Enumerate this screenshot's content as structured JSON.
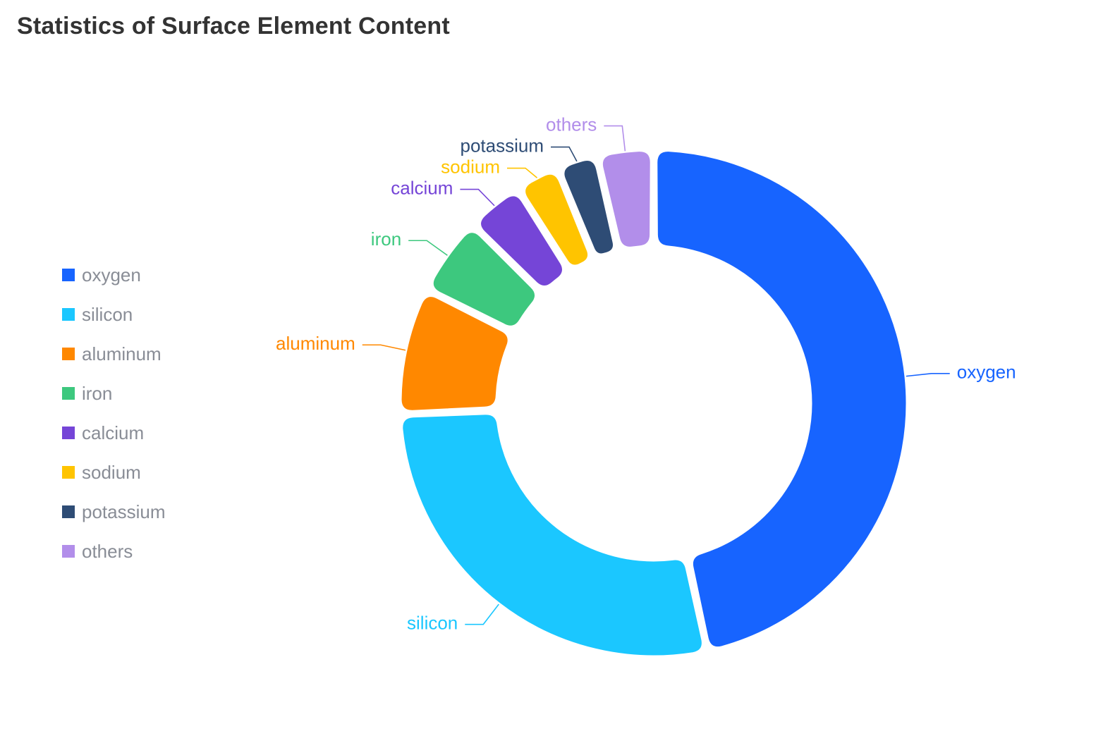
{
  "chart_data": {
    "type": "pie",
    "title": "Statistics of Surface Element Content",
    "legend_position": "left",
    "categories": [
      "oxygen",
      "silicon",
      "aluminum",
      "iron",
      "calcium",
      "sodium",
      "potassium",
      "others"
    ],
    "values": [
      46.6,
      27.7,
      8.1,
      5.0,
      3.6,
      2.8,
      2.6,
      3.6
    ],
    "colors": [
      "#1764ff",
      "#1bc7ff",
      "#ff8800",
      "#3dc87e",
      "#7545d7",
      "#ffc400",
      "#2e4c75",
      "#b28eea"
    ]
  }
}
